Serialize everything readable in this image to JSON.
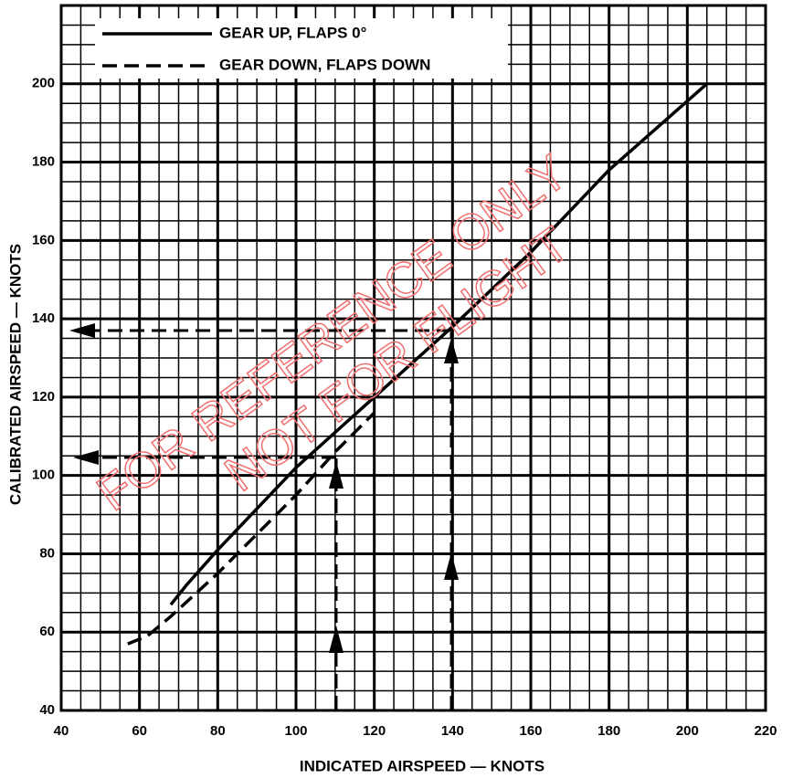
{
  "chart_data": {
    "type": "line",
    "xlabel": "INDICATED AIRSPEED — KNOTS",
    "ylabel": "CALIBRATED AIRSPEED — KNOTS",
    "annotations": [
      "FOR REFERENCE ONLY",
      "NOT FOR FLIGHT"
    ],
    "xlim": [
      40,
      220
    ],
    "ylim": [
      40,
      220
    ],
    "xticks": [
      40,
      60,
      80,
      100,
      120,
      140,
      160,
      180,
      200,
      220
    ],
    "yticks": [
      40,
      60,
      80,
      100,
      120,
      140,
      160,
      180,
      200
    ],
    "grid": true,
    "minor_grid_step": 5,
    "legend": "upper left",
    "series": [
      {
        "name": "GEAR UP, FLAPS 0°",
        "color": "#000000",
        "style": "solid",
        "x": [
          68,
          72,
          80,
          100,
          120,
          140,
          160,
          180,
          205
        ],
        "values": [
          67,
          72,
          81,
          102,
          120,
          138,
          157,
          178,
          200
        ]
      },
      {
        "name": "GEAR DOWN, FLAPS DOWN",
        "color": "#000000",
        "style": "dashed",
        "x": [
          57,
          62,
          68,
          80,
          100,
          110,
          120
        ],
        "values": [
          57,
          59,
          64,
          75,
          95,
          106,
          116
        ]
      }
    ]
  }
}
